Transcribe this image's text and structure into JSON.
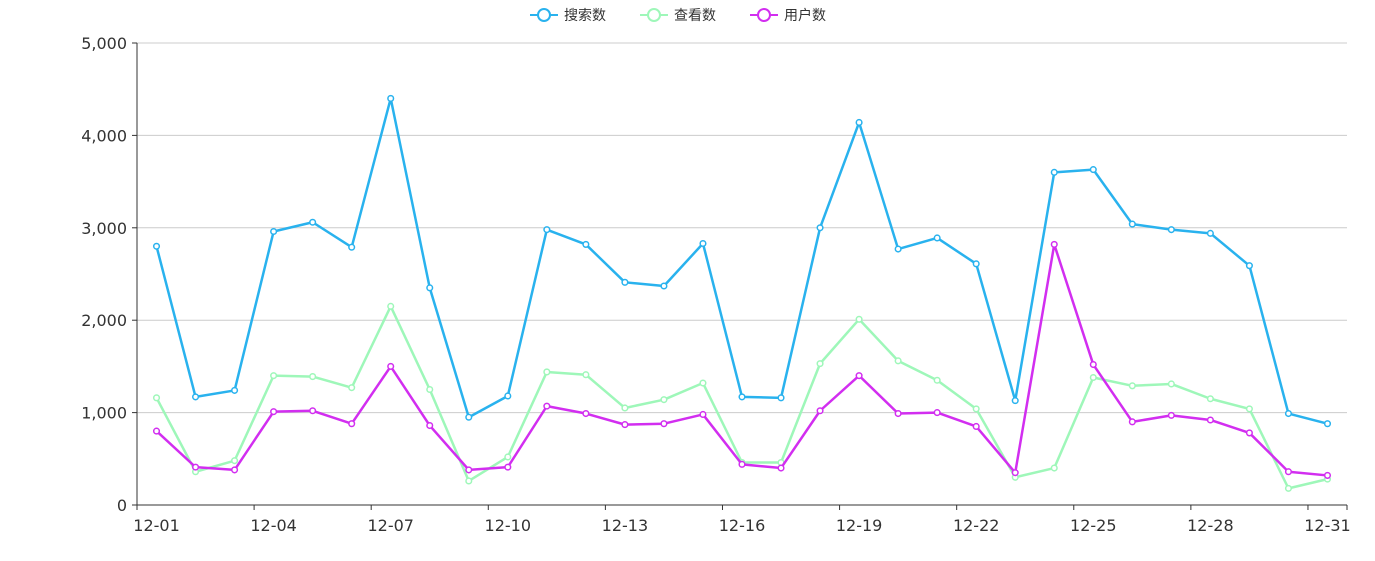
{
  "chart_data": {
    "type": "line",
    "title": "",
    "xlabel": "",
    "ylabel": "",
    "categories": [
      "12-01",
      "12-02",
      "12-03",
      "12-04",
      "12-05",
      "12-06",
      "12-07",
      "12-08",
      "12-09",
      "12-10",
      "12-11",
      "12-12",
      "12-13",
      "12-14",
      "12-15",
      "12-16",
      "12-17",
      "12-18",
      "12-19",
      "12-20",
      "12-21",
      "12-22",
      "12-23",
      "12-24",
      "12-25",
      "12-26",
      "12-27",
      "12-28",
      "12-29",
      "12-30",
      "12-31"
    ],
    "x_tick_labels": [
      "12-01",
      "12-04",
      "12-07",
      "12-10",
      "12-13",
      "12-16",
      "12-19",
      "12-22",
      "12-25",
      "12-28",
      "12-31"
    ],
    "y_tick_labels": [
      "0",
      "1,000",
      "2,000",
      "3,000",
      "4,000",
      "5,000"
    ],
    "ylim": [
      0,
      5000
    ],
    "grid": true,
    "legend_position": "top-center",
    "series": [
      {
        "name": "搜索数",
        "color": "#29b2ee",
        "values": [
          2800,
          1170,
          1240,
          2960,
          3060,
          2790,
          4400,
          2350,
          950,
          1180,
          2980,
          2820,
          2410,
          2370,
          2830,
          1170,
          1160,
          3000,
          4140,
          2770,
          2890,
          2610,
          1130,
          3600,
          3630,
          3040,
          2980,
          2940,
          2590,
          990,
          880
        ]
      },
      {
        "name": "查看数",
        "color": "#9ef7b9",
        "values": [
          1160,
          360,
          480,
          1400,
          1390,
          1270,
          2150,
          1250,
          260,
          520,
          1440,
          1410,
          1050,
          1140,
          1320,
          460,
          460,
          1530,
          2010,
          1560,
          1350,
          1040,
          300,
          400,
          1380,
          1290,
          1310,
          1150,
          1040,
          180,
          280
        ]
      },
      {
        "name": "用户数",
        "color": "#d22ef0",
        "values": [
          800,
          410,
          380,
          1010,
          1020,
          880,
          1500,
          860,
          380,
          410,
          1070,
          990,
          870,
          880,
          980,
          440,
          400,
          1020,
          1400,
          990,
          1000,
          850,
          350,
          2820,
          1520,
          900,
          970,
          920,
          780,
          360,
          320
        ]
      }
    ]
  }
}
